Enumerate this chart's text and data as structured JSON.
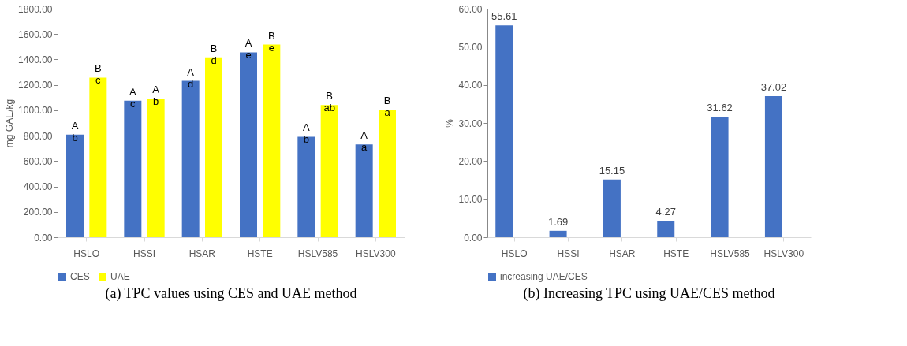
{
  "chart_data": [
    {
      "type": "bar",
      "ylabel": "mg GAE/kg",
      "categories": [
        "HSLO",
        "HSSI",
        "HSAR",
        "HSTE",
        "HSLV585",
        "HSLV300"
      ],
      "series": [
        {
          "name": "CES",
          "color": "#4472c4",
          "values": [
            808,
            1075,
            1232,
            1456,
            792,
            731
          ],
          "value_labels": [
            "A\nb",
            "A\nc",
            "A\nd",
            "A\ne",
            "A\nb",
            "A\na"
          ]
        },
        {
          "name": "UAE",
          "color": "#ffff00",
          "values": [
            1257,
            1093,
            1417,
            1517,
            1041,
            1003
          ],
          "value_labels": [
            "B\nc",
            "A\nb",
            "B\nd",
            "B\ne",
            "B\nab",
            "B\na"
          ]
        }
      ],
      "ylim": [
        0,
        1800
      ],
      "yticks": [
        {
          "value": 0,
          "label": "0.00"
        },
        {
          "value": 200,
          "label": "200.00"
        },
        {
          "value": 400,
          "label": "400.00"
        },
        {
          "value": 600,
          "label": "600.00"
        },
        {
          "value": 800,
          "label": "800.00"
        },
        {
          "value": 1000,
          "label": "1000.00"
        },
        {
          "value": 1200,
          "label": "1200.00"
        },
        {
          "value": 1400,
          "label": "1400.00"
        },
        {
          "value": 1600,
          "label": "1600.00"
        },
        {
          "value": 1800,
          "label": "1800.00"
        }
      ],
      "legend": "bottom",
      "grid": false,
      "annotations": [
        "(a) TPC values using CES and UAE method"
      ]
    },
    {
      "type": "bar",
      "ylabel": "%",
      "categories": [
        "HSLO",
        "HSSI",
        "HSAR",
        "HSTE",
        "HSLV585",
        "HSLV300"
      ],
      "series": [
        {
          "name": "increasing  UAE/CES",
          "color": "#4472c4",
          "values": [
            55.61,
            1.69,
            15.15,
            4.27,
            31.62,
            37.02
          ]
        }
      ],
      "ylim": [
        0,
        60
      ],
      "yticks": [
        {
          "value": 0,
          "label": "0.00"
        },
        {
          "value": 10,
          "label": "10.00"
        },
        {
          "value": 20,
          "label": "20.00"
        },
        {
          "value": 30,
          "label": "30.00"
        },
        {
          "value": 40,
          "label": "40.00"
        },
        {
          "value": 50,
          "label": "50.00"
        },
        {
          "value": 60,
          "label": "60.00"
        }
      ],
      "data_labels": true,
      "legend": "bottom",
      "grid": false,
      "annotations": [
        "(b) Increasing TPC using UAE/CES method"
      ]
    }
  ]
}
